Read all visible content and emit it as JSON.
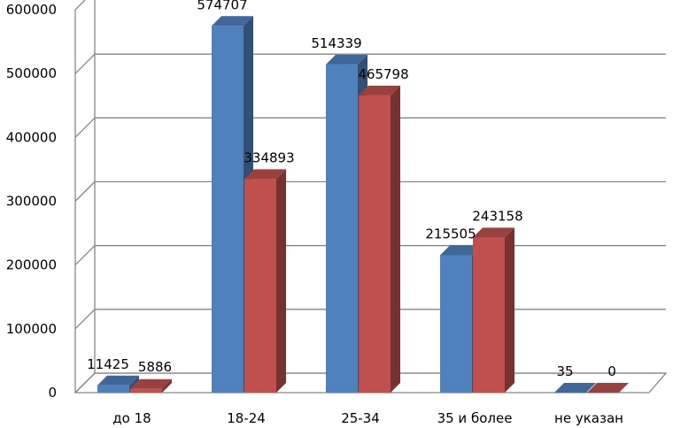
{
  "chart_data": {
    "type": "bar",
    "style": "3d-clustered-column",
    "categories": [
      "до 18",
      "18-24",
      "25-34",
      "35 и более",
      "не указан"
    ],
    "series": [
      {
        "values": [
          11425,
          574707,
          514339,
          215505,
          35
        ],
        "color": "#4f81bd"
      },
      {
        "values": [
          5886,
          334893,
          465798,
          243158,
          0
        ],
        "color": "#c0504d"
      }
    ],
    "ylim": [
      0,
      600000
    ],
    "yticks": [
      0,
      100000,
      200000,
      300000,
      400000,
      500000,
      600000
    ],
    "grid": true,
    "legend": "none",
    "data_labels": [
      [
        "11425",
        "574707",
        "514339",
        "215505",
        "35"
      ],
      [
        "5886",
        "334893",
        "465798",
        "243158",
        "0"
      ]
    ]
  }
}
